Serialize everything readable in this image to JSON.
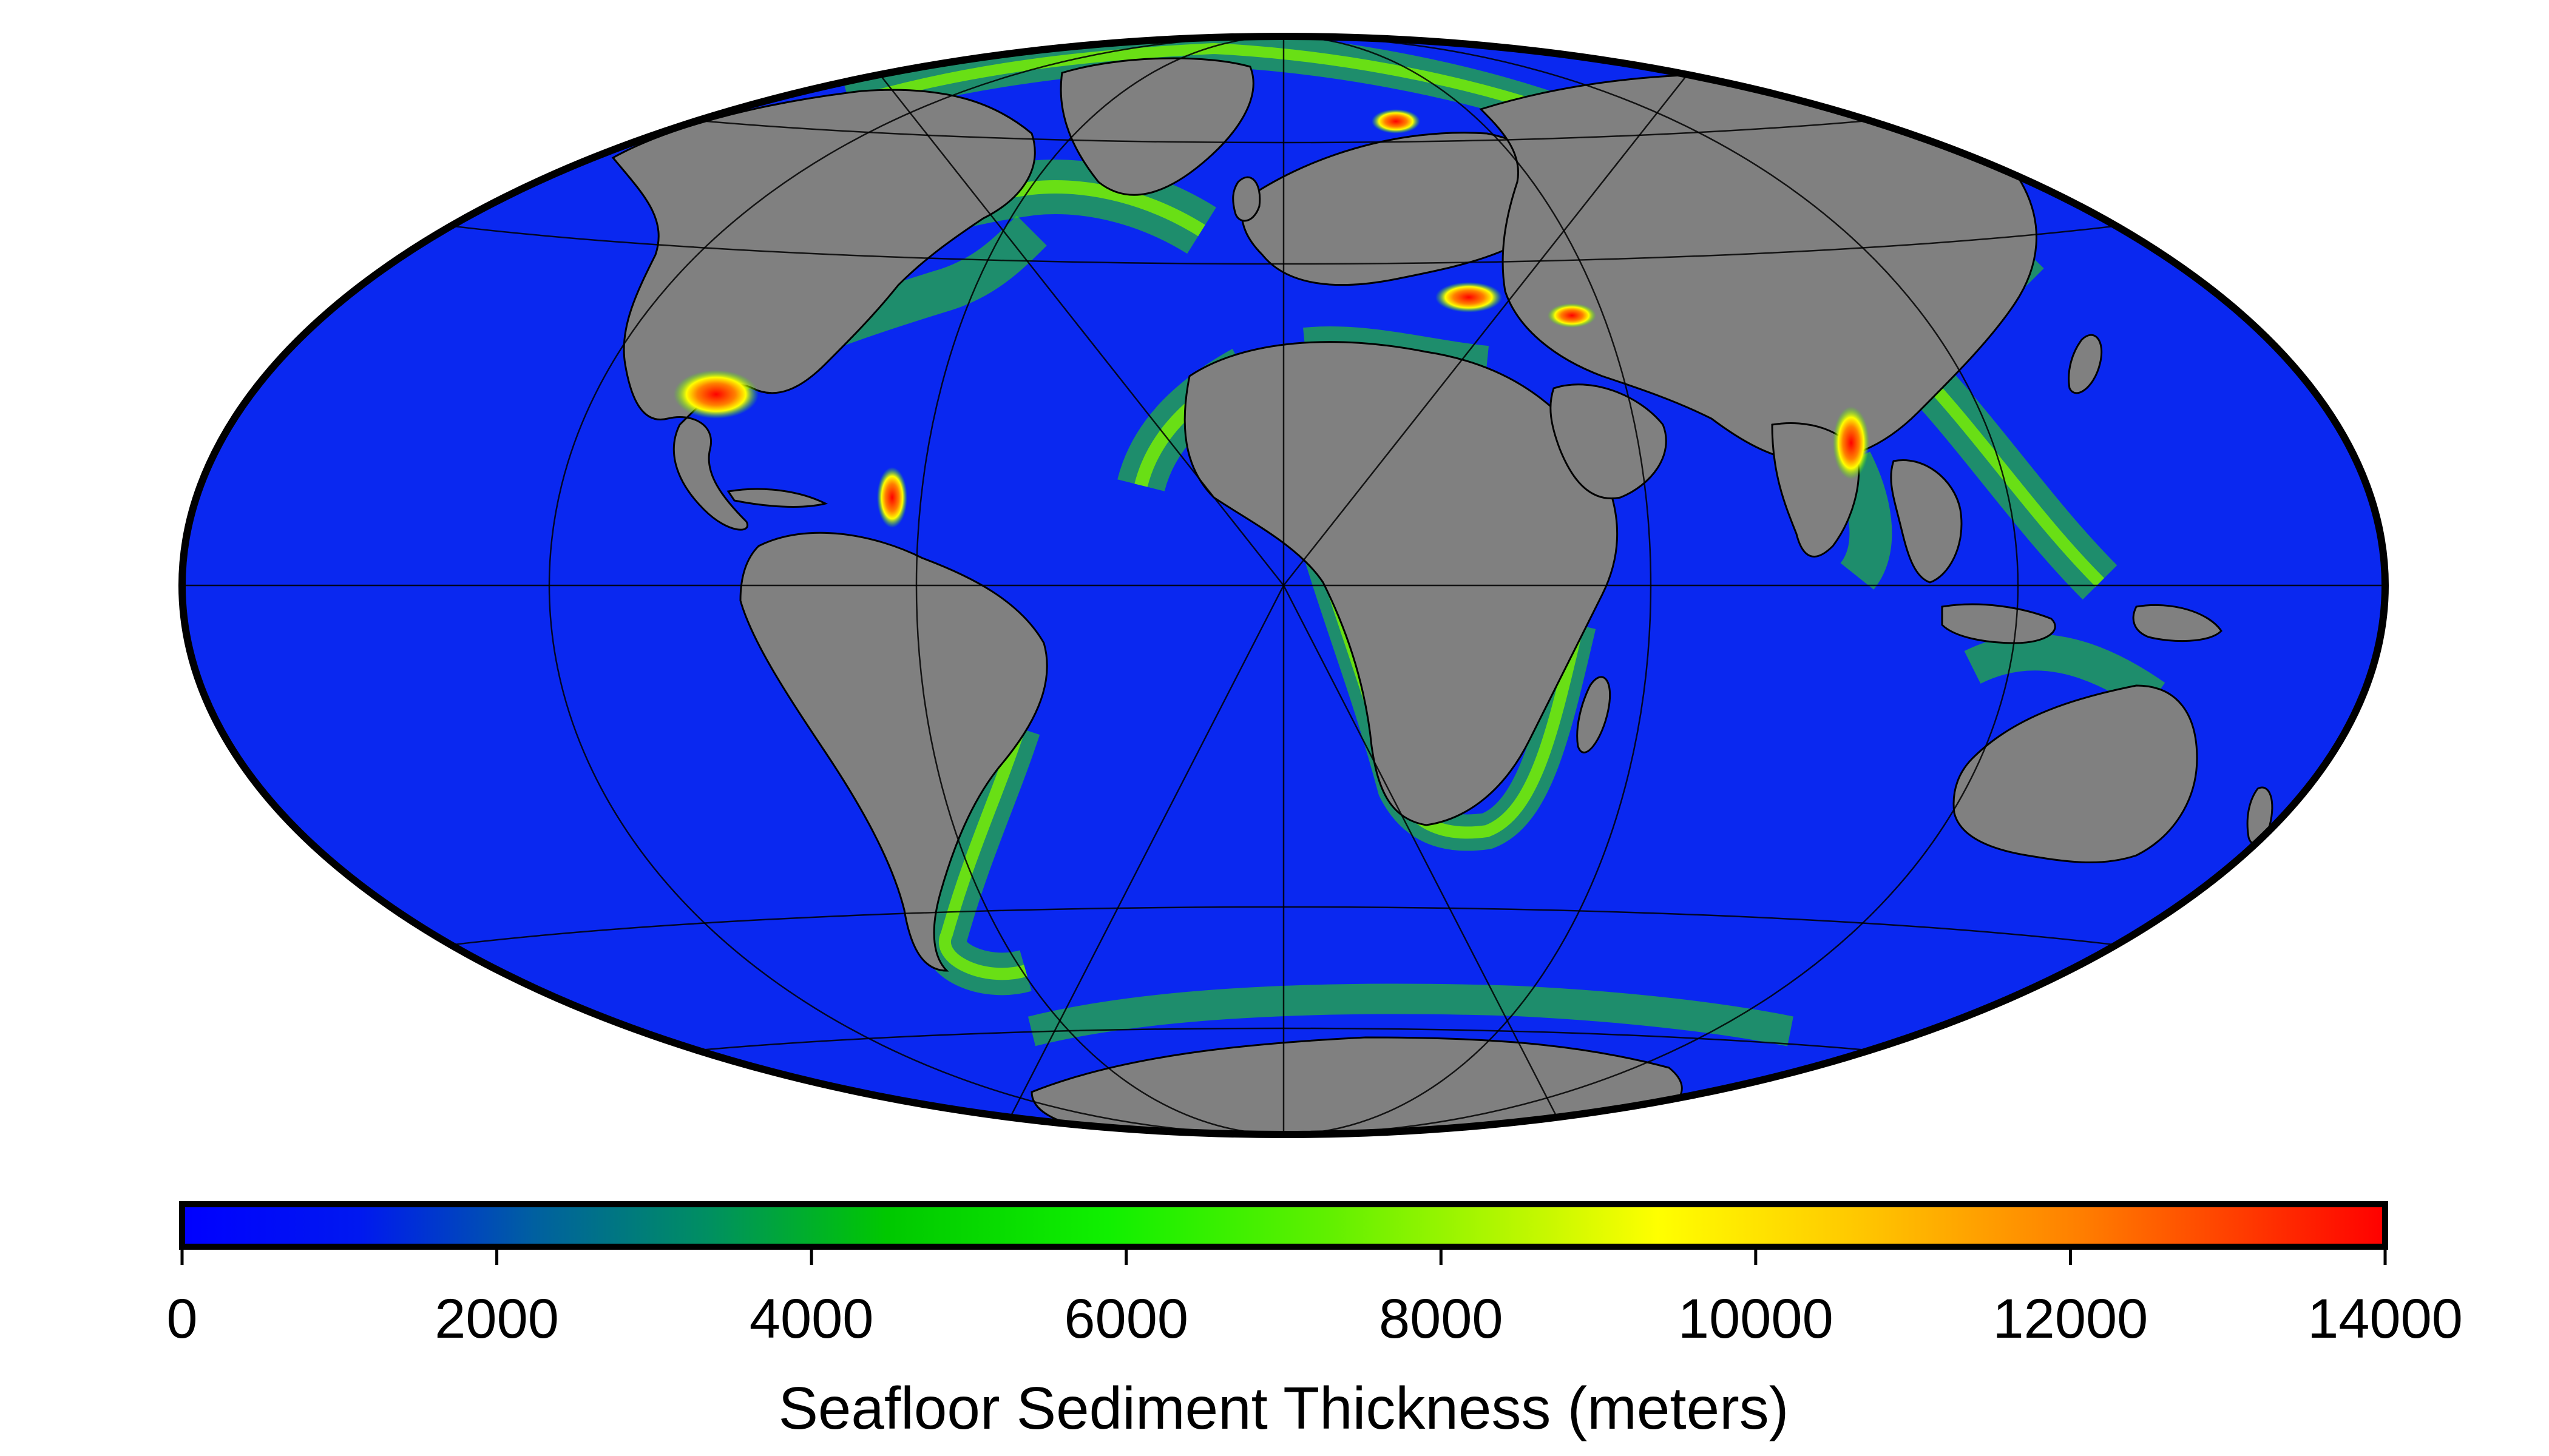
{
  "colorbar": {
    "title": "Seafloor Sediment Thickness (meters)",
    "min": 0,
    "max": 14000,
    "ticks": [
      {
        "value": 0,
        "label": "0"
      },
      {
        "value": 2000,
        "label": "2000"
      },
      {
        "value": 4000,
        "label": "4000"
      },
      {
        "value": 6000,
        "label": "6000"
      },
      {
        "value": 8000,
        "label": "8000"
      },
      {
        "value": 10000,
        "label": "10000"
      },
      {
        "value": 12000,
        "label": "12000"
      },
      {
        "value": 14000,
        "label": "14000"
      }
    ],
    "colors": [
      "#0000ff",
      "#0022ee",
      "#009060",
      "#00e000",
      "#33ee00",
      "#88f000",
      "#ffff00",
      "#ffc000",
      "#ff7000",
      "#ff0000"
    ]
  },
  "map": {
    "projection": "Mollweide (Hammer-type global)",
    "central_meridian_note": "centered on Atlantic/Africa",
    "ocean_color": "#0a28f0",
    "land_color": "#808080",
    "graticule_color": "#000000"
  }
}
